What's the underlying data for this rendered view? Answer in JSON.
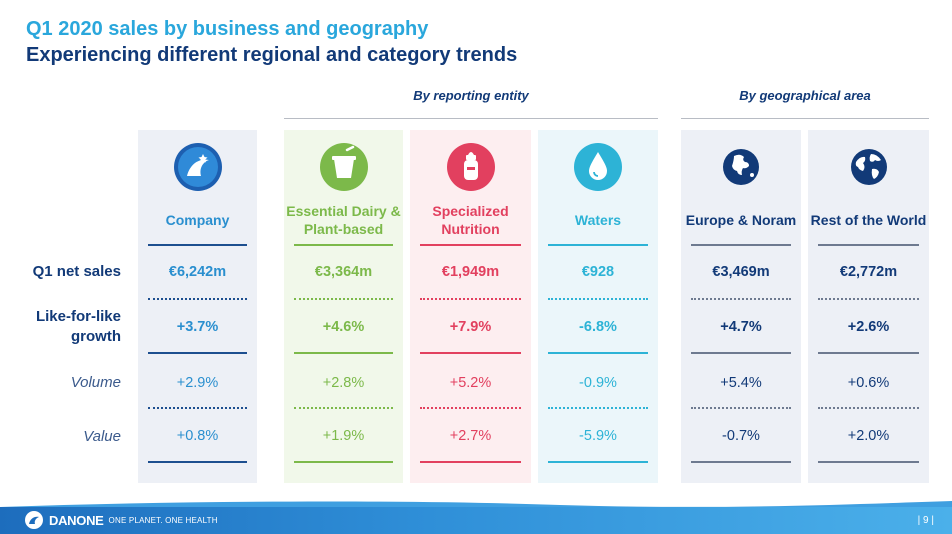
{
  "title": "Q1 2020 sales by business and geography",
  "subtitle": "Experiencing different regional and category trends",
  "sections": {
    "entity": "By reporting entity",
    "geo": "By geographical area"
  },
  "row_labels": {
    "net_sales": "Q1 net sales",
    "lfl": "Like-for-like growth",
    "volume": "Volume",
    "value": "Value"
  },
  "columns": [
    {
      "icon": "danone-globe-icon",
      "head": "Company",
      "net_sales": "€6,242m",
      "lfl": "+3.7%",
      "volume": "+2.9%",
      "value": "+0.8%",
      "bg": "#edf0f6",
      "color": "#2a8fcf",
      "head_color": "#2a8fcf",
      "line": "#1d4f8f"
    },
    {
      "icon": "yogurt-cup-icon",
      "head": "Essential Dairy & Plant-based",
      "net_sales": "€3,364m",
      "lfl": "+4.6%",
      "volume": "+2.8%",
      "value": "+1.9%",
      "bg": "#f1f8ea",
      "color": "#7cb94a",
      "head_color": "#7cb94a",
      "line": "#7cb94a"
    },
    {
      "icon": "baby-bottle-icon",
      "head": "Specialized Nutrition",
      "net_sales": "€1,949m",
      "lfl": "+7.9%",
      "volume": "+5.2%",
      "value": "+2.7%",
      "bg": "#fdeef0",
      "color": "#e2405f",
      "head_color": "#e2405f",
      "line": "#e2405f"
    },
    {
      "icon": "water-drop-icon",
      "head": "Waters",
      "net_sales": "€928",
      "lfl": "-6.8%",
      "volume": "-0.9%",
      "value": "-5.9%",
      "bg": "#ebf6fa",
      "color": "#2db3d6",
      "head_color": "#2db3d6",
      "line": "#2db3d6"
    },
    {
      "icon": "globe-europe-icon",
      "head": "Europe & Noram",
      "net_sales": "€3,469m",
      "lfl": "+4.7%",
      "volume": "+5.4%",
      "value": "-0.7%",
      "bg": "#edf0f6",
      "color": "#123a78",
      "head_color": "#123a78",
      "line": "#6e7a90"
    },
    {
      "icon": "globe-world-icon",
      "head": "Rest of the World",
      "net_sales": "€2,772m",
      "lfl": "+2.6%",
      "volume": "+0.6%",
      "value": "+2.0%",
      "bg": "#edf0f6",
      "color": "#123a78",
      "head_color": "#123a78",
      "line": "#6e7a90"
    }
  ],
  "footer": {
    "brand": "DANONE",
    "tagline": "ONE PLANET. ONE HEALTH",
    "page": "| 9 |"
  }
}
